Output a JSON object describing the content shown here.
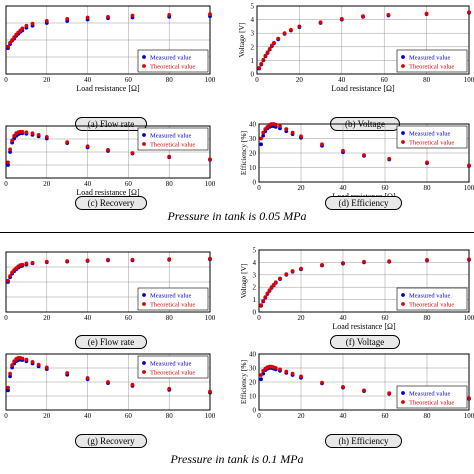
{
  "chart_data": [
    {
      "id": "a",
      "type": "scatter",
      "xlabel": "Load resistance [Ω]",
      "ylabel": "",
      "xlim": [
        0,
        100
      ],
      "ylim": [
        0,
        5
      ],
      "xticks": [
        "0",
        "20",
        "40",
        "60",
        "80",
        "100"
      ],
      "yticks": [],
      "legend": "bottom-right",
      "caption": "(a) Flow rate",
      "series": [
        {
          "name": "Measured value",
          "color": "#0000cc",
          "x": [
            1,
            2,
            3,
            4,
            5,
            6,
            7,
            8,
            10,
            13,
            20,
            30,
            40,
            50,
            62,
            80,
            100
          ],
          "y": [
            1.9,
            2.2,
            2.45,
            2.6,
            2.8,
            2.95,
            3.1,
            3.2,
            3.4,
            3.55,
            3.75,
            3.9,
            4.0,
            4.1,
            4.15,
            4.2,
            4.25
          ]
        },
        {
          "name": "Theoretical value",
          "color": "#dd0000",
          "x": [
            1,
            2,
            3,
            4,
            5,
            6,
            7,
            8,
            10,
            13,
            20,
            30,
            40,
            50,
            62,
            80,
            100
          ],
          "y": [
            2.0,
            2.3,
            2.5,
            2.7,
            2.9,
            3.05,
            3.2,
            3.35,
            3.55,
            3.7,
            3.9,
            4.05,
            4.15,
            4.2,
            4.3,
            4.35,
            4.4
          ]
        }
      ]
    },
    {
      "id": "b",
      "type": "scatter",
      "xlabel": "Load resistance [Ω]",
      "ylabel": "Voltage [V]",
      "xlim": [
        0,
        100
      ],
      "ylim": [
        0,
        5
      ],
      "xticks": [
        "0",
        "20",
        "40",
        "60",
        "80",
        "100"
      ],
      "yticks": [
        "0",
        "1",
        "2",
        "3",
        "4",
        "5"
      ],
      "legend": "bottom-right",
      "caption": "(b) Voltage",
      "series": [
        {
          "name": "Measured value",
          "color": "#0000cc",
          "x": [
            1,
            2,
            3,
            4,
            5,
            6,
            7,
            8,
            10,
            13,
            16,
            20,
            30,
            40,
            50,
            62,
            80,
            100
          ],
          "y": [
            0.4,
            0.7,
            1.0,
            1.3,
            1.55,
            1.8,
            2.05,
            2.25,
            2.55,
            2.95,
            3.2,
            3.45,
            3.75,
            4.0,
            4.2,
            4.3,
            4.4,
            4.5
          ]
        },
        {
          "name": "Theoretical value",
          "color": "#dd0000",
          "x": [
            1,
            2,
            3,
            4,
            5,
            6,
            7,
            8,
            10,
            13,
            16,
            20,
            30,
            40,
            50,
            62,
            80,
            100
          ],
          "y": [
            0.45,
            0.75,
            1.05,
            1.35,
            1.6,
            1.85,
            2.1,
            2.3,
            2.6,
            3.0,
            3.25,
            3.5,
            3.8,
            4.05,
            4.25,
            4.35,
            4.45,
            4.55
          ]
        }
      ]
    },
    {
      "id": "c",
      "type": "scatter",
      "xlabel": "Load resistance [Ω]",
      "ylabel": "",
      "xlim": [
        0,
        100
      ],
      "ylim": [
        0,
        10
      ],
      "xticks": [
        "0",
        "20",
        "40",
        "60",
        "80",
        "100"
      ],
      "yticks": [],
      "legend": "top-right",
      "caption": "(c) Recovery",
      "series": [
        {
          "name": "Measured value",
          "color": "#0000cc",
          "x": [
            1,
            2,
            3,
            4,
            5,
            6,
            7,
            8,
            10,
            13,
            16,
            20,
            30,
            40,
            50,
            62,
            80,
            100
          ],
          "y": [
            2.5,
            5.0,
            6.8,
            7.6,
            8.1,
            8.4,
            8.6,
            8.6,
            8.5,
            8.3,
            8.0,
            7.6,
            6.7,
            5.9,
            5.2,
            4.7,
            4.0,
            3.5
          ]
        },
        {
          "name": "Theoretical value",
          "color": "#dd0000",
          "x": [
            1,
            2,
            3,
            4,
            5,
            6,
            7,
            8,
            10,
            13,
            16,
            20,
            30,
            40,
            50,
            62,
            80,
            100
          ],
          "y": [
            3.0,
            5.5,
            7.2,
            8.1,
            8.6,
            8.8,
            8.9,
            8.9,
            8.8,
            8.6,
            8.3,
            7.9,
            6.9,
            6.1,
            5.4,
            4.8,
            4.1,
            3.6
          ]
        }
      ]
    },
    {
      "id": "d",
      "type": "scatter",
      "xlabel": "Load resistance [Ω]",
      "ylabel": "Efficiency [%]",
      "xlim": [
        0,
        100
      ],
      "ylim": [
        0,
        40
      ],
      "xticks": [
        "0",
        "20",
        "40",
        "60",
        "80",
        "100"
      ],
      "yticks": [
        "0",
        "10",
        "20",
        "30",
        "40"
      ],
      "legend": "top-right",
      "caption": "(d) Efficiency",
      "series": [
        {
          "name": "Measured value",
          "color": "#0000cc",
          "x": [
            1,
            2,
            3,
            4,
            5,
            6,
            7,
            8,
            10,
            13,
            16,
            20,
            30,
            40,
            50,
            62,
            80,
            100
          ],
          "y": [
            26,
            32,
            35,
            37,
            38,
            38.5,
            38.5,
            38,
            37,
            35,
            33,
            30.5,
            25,
            20.5,
            18,
            15.5,
            13,
            11
          ]
        },
        {
          "name": "Theoretical value",
          "color": "#dd0000",
          "x": [
            1,
            2,
            3,
            4,
            5,
            6,
            7,
            8,
            10,
            13,
            16,
            20,
            30,
            40,
            50,
            62,
            80,
            100
          ],
          "y": [
            30,
            34,
            36.5,
            38,
            39.5,
            40,
            40,
            39.5,
            38.5,
            36.5,
            34,
            31.5,
            26,
            21.5,
            18.5,
            16,
            13.5,
            11.5
          ]
        }
      ]
    },
    {
      "id": "e",
      "type": "scatter",
      "xlabel": "",
      "ylabel": "",
      "xlim": [
        0,
        100
      ],
      "ylim": [
        0,
        5
      ],
      "xticks": [
        "0",
        "20",
        "40",
        "60",
        "80",
        "100"
      ],
      "yticks": [],
      "legend": "bottom-right",
      "caption": "(e) Flow rate",
      "series": [
        {
          "name": "Measured value",
          "color": "#0000cc",
          "x": [
            1,
            2,
            3,
            4,
            5,
            6,
            7,
            8,
            10,
            13,
            20,
            30,
            40,
            50,
            62,
            80,
            100
          ],
          "y": [
            2.5,
            2.9,
            3.2,
            3.4,
            3.55,
            3.7,
            3.8,
            3.85,
            3.95,
            4.05,
            4.15,
            4.2,
            4.25,
            4.3,
            4.3,
            4.35,
            4.4
          ]
        },
        {
          "name": "Theoretical value",
          "color": "#dd0000",
          "x": [
            1,
            2,
            3,
            4,
            5,
            6,
            7,
            8,
            10,
            13,
            20,
            30,
            40,
            50,
            62,
            80,
            100
          ],
          "y": [
            2.6,
            3.0,
            3.3,
            3.5,
            3.65,
            3.8,
            3.9,
            3.95,
            4.05,
            4.1,
            4.2,
            4.25,
            4.3,
            4.35,
            4.35,
            4.4,
            4.45
          ]
        }
      ]
    },
    {
      "id": "f",
      "type": "scatter",
      "xlabel": "Load resistance [Ω]",
      "ylabel": "Voltage [V]",
      "xlim": [
        0,
        100
      ],
      "ylim": [
        0,
        5
      ],
      "xticks": [
        "0",
        "20",
        "40",
        "60",
        "80",
        "100"
      ],
      "yticks": [
        "0",
        "1",
        "2",
        "3",
        "4",
        "5"
      ],
      "legend": "bottom-right",
      "caption": "(f) Voltage",
      "series": [
        {
          "name": "Measured value",
          "color": "#0000cc",
          "x": [
            1,
            2,
            3,
            4,
            5,
            6,
            7,
            8,
            10,
            13,
            16,
            20,
            30,
            40,
            50,
            62,
            80,
            100
          ],
          "y": [
            0.5,
            0.85,
            1.15,
            1.45,
            1.7,
            1.95,
            2.15,
            2.35,
            2.65,
            3.0,
            3.25,
            3.45,
            3.75,
            3.9,
            4.0,
            4.05,
            4.15,
            4.2
          ]
        },
        {
          "name": "Theoretical value",
          "color": "#dd0000",
          "x": [
            1,
            2,
            3,
            4,
            5,
            6,
            7,
            8,
            10,
            13,
            16,
            20,
            30,
            40,
            50,
            62,
            80,
            100
          ],
          "y": [
            0.55,
            0.9,
            1.2,
            1.5,
            1.75,
            2.0,
            2.2,
            2.4,
            2.7,
            3.05,
            3.3,
            3.5,
            3.8,
            3.95,
            4.05,
            4.1,
            4.2,
            4.25
          ]
        }
      ]
    },
    {
      "id": "g",
      "type": "scatter",
      "xlabel": "",
      "ylabel": "",
      "xlim": [
        0,
        100
      ],
      "ylim": [
        0,
        10
      ],
      "xticks": [
        "0",
        "20",
        "40",
        "60",
        "80",
        "100"
      ],
      "yticks": [],
      "legend": "top-right",
      "caption": "(g) Recovery",
      "series": [
        {
          "name": "Measured value",
          "color": "#0000cc",
          "x": [
            1,
            2,
            3,
            4,
            5,
            6,
            7,
            8,
            10,
            13,
            16,
            20,
            30,
            40,
            50,
            62,
            80,
            100
          ],
          "y": [
            3.5,
            6.0,
            7.6,
            8.3,
            8.7,
            8.9,
            9.0,
            8.9,
            8.7,
            8.3,
            7.8,
            7.3,
            6.3,
            5.5,
            4.8,
            4.3,
            3.6,
            3.1
          ]
        },
        {
          "name": "Theoretical value",
          "color": "#dd0000",
          "x": [
            1,
            2,
            3,
            4,
            5,
            6,
            7,
            8,
            10,
            13,
            16,
            20,
            30,
            40,
            50,
            62,
            80,
            100
          ],
          "y": [
            4.0,
            6.5,
            8.0,
            8.7,
            9.1,
            9.3,
            9.3,
            9.2,
            9.0,
            8.6,
            8.1,
            7.6,
            6.6,
            5.7,
            5.0,
            4.5,
            3.8,
            3.3
          ]
        }
      ]
    },
    {
      "id": "h",
      "type": "scatter",
      "xlabel": "",
      "ylabel": "Efficiency [%]",
      "xlim": [
        0,
        100
      ],
      "ylim": [
        0,
        40
      ],
      "xticks": [
        "0",
        "20",
        "40",
        "60",
        "80",
        "100"
      ],
      "yticks": [
        "0",
        "10",
        "20",
        "30",
        "40"
      ],
      "legend": "bottom-right",
      "caption": "(h) Efficiency",
      "series": [
        {
          "name": "Measured value",
          "color": "#0000cc",
          "x": [
            1,
            2,
            3,
            4,
            5,
            6,
            7,
            8,
            10,
            13,
            16,
            20,
            30,
            40,
            50,
            62,
            80,
            100
          ],
          "y": [
            22,
            26,
            28.5,
            29.5,
            30,
            30,
            29.5,
            29,
            28,
            26.5,
            25,
            23,
            19,
            16,
            13.5,
            11.5,
            9.5,
            8
          ]
        },
        {
          "name": "Theoretical value",
          "color": "#dd0000",
          "x": [
            1,
            2,
            3,
            4,
            5,
            6,
            7,
            8,
            10,
            13,
            16,
            20,
            30,
            40,
            50,
            62,
            80,
            100
          ],
          "y": [
            25,
            28,
            29.5,
            30.5,
            31,
            31,
            30.5,
            30,
            29,
            27.5,
            26,
            24,
            19.5,
            16.5,
            14,
            12,
            10,
            8.5
          ]
        }
      ]
    }
  ],
  "pressure_top": "Pressure in tank is 0.05 MPa",
  "pressure_bottom": "Pressure in tank is 0.1 MPa"
}
